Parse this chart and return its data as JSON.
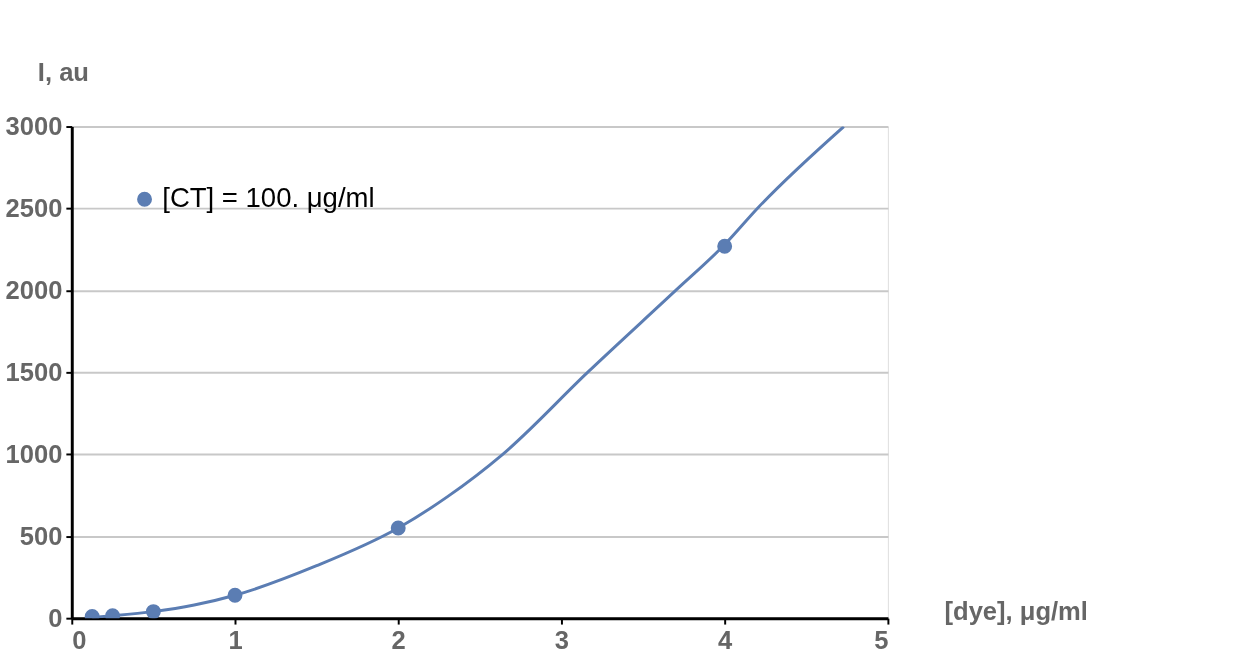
{
  "chart_data": {
    "type": "scatter",
    "xlabel": "[dye], μg/ml",
    "ylabel": "I, au",
    "xlim": [
      0,
      5
    ],
    "xticks": [
      0,
      1,
      2,
      3,
      4,
      5
    ],
    "ylim": [
      0,
      3000
    ],
    "yticks": [
      0,
      500,
      1000,
      1500,
      2000,
      2500,
      3000
    ],
    "grid": "y",
    "legend": "top left",
    "marker": "circle",
    "series": [
      {
        "type": "line",
        "marker": "none",
        "color": "#5b7db3",
        "x": [
          0.125,
          0.25,
          0.5,
          0.75,
          1,
          1.5,
          2,
          2.3,
          2.64,
          3.16,
          3.7,
          4,
          4.2,
          4.73
        ],
        "values": [
          5,
          15,
          40,
          80,
          140,
          320,
          550,
          740,
          1000,
          1500,
          2000,
          2280,
          2500,
          3000
        ]
      },
      {
        "name": "[CT] = 100. μg/ml",
        "color": "#5b7db3",
        "x": [
          0.125,
          0.25,
          0.5,
          1,
          2,
          4
        ],
        "values": [
          10,
          15,
          40,
          140,
          550,
          2270
        ]
      }
    ]
  }
}
